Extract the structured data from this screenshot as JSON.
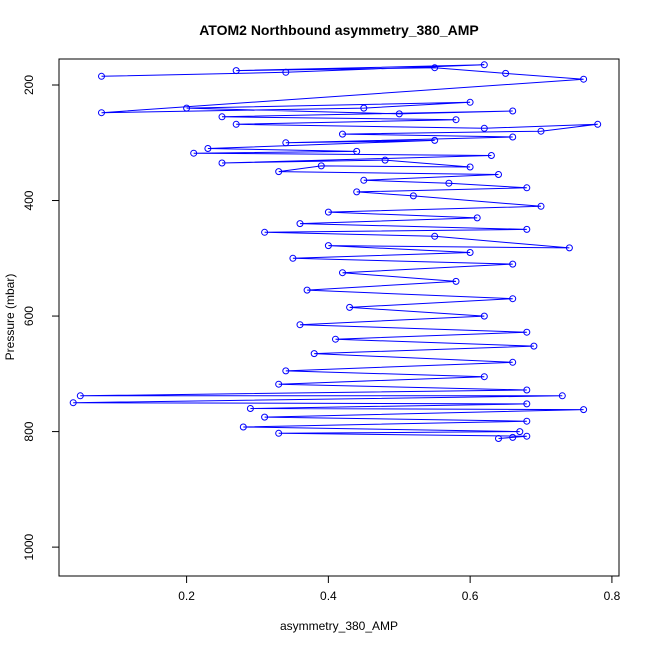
{
  "chart_data": {
    "type": "scatter",
    "title": "ATOM2 Northbound asymmetry_380_AMP",
    "xlabel": "asymmetry_380_AMP",
    "ylabel": "Pressure (mbar)",
    "xlim": [
      0.02,
      0.81
    ],
    "ylim": [
      1050,
      155
    ],
    "y_reversed": true,
    "x_ticks": [
      0.2,
      0.4,
      0.6,
      0.8
    ],
    "x_tick_labels": [
      "0.2",
      "0.4",
      "0.6",
      "0.8"
    ],
    "y_ticks": [
      200,
      400,
      600,
      800,
      1000
    ],
    "y_tick_labels": [
      "200",
      "400",
      "600",
      "800",
      "1000"
    ],
    "grid": false,
    "legend": "none",
    "series": [
      {
        "marker": "open-circle",
        "connected": true,
        "color": "#0000ff",
        "points": [
          [
            0.08,
            185
          ],
          [
            0.34,
            178
          ],
          [
            0.62,
            165
          ],
          [
            0.27,
            175
          ],
          [
            0.55,
            170
          ],
          [
            0.65,
            180
          ],
          [
            0.76,
            190
          ],
          [
            0.08,
            248
          ],
          [
            0.45,
            240
          ],
          [
            0.6,
            230
          ],
          [
            0.2,
            240
          ],
          [
            0.5,
            250
          ],
          [
            0.66,
            245
          ],
          [
            0.25,
            255
          ],
          [
            0.58,
            260
          ],
          [
            0.27,
            268
          ],
          [
            0.62,
            275
          ],
          [
            0.78,
            268
          ],
          [
            0.7,
            280
          ],
          [
            0.42,
            285
          ],
          [
            0.66,
            290
          ],
          [
            0.34,
            300
          ],
          [
            0.55,
            296
          ],
          [
            0.23,
            310
          ],
          [
            0.44,
            315
          ],
          [
            0.21,
            318
          ],
          [
            0.63,
            322
          ],
          [
            0.25,
            335
          ],
          [
            0.48,
            330
          ],
          [
            0.6,
            342
          ],
          [
            0.39,
            340
          ],
          [
            0.33,
            350
          ],
          [
            0.64,
            355
          ],
          [
            0.45,
            365
          ],
          [
            0.57,
            370
          ],
          [
            0.68,
            378
          ],
          [
            0.44,
            385
          ],
          [
            0.52,
            392
          ],
          [
            0.7,
            410
          ],
          [
            0.4,
            420
          ],
          [
            0.61,
            430
          ],
          [
            0.36,
            440
          ],
          [
            0.68,
            450
          ],
          [
            0.31,
            455
          ],
          [
            0.55,
            462
          ],
          [
            0.74,
            482
          ],
          [
            0.4,
            478
          ],
          [
            0.6,
            490
          ],
          [
            0.35,
            500
          ],
          [
            0.66,
            510
          ],
          [
            0.42,
            525
          ],
          [
            0.58,
            540
          ],
          [
            0.37,
            555
          ],
          [
            0.66,
            570
          ],
          [
            0.43,
            585
          ],
          [
            0.62,
            600
          ],
          [
            0.36,
            615
          ],
          [
            0.68,
            628
          ],
          [
            0.41,
            640
          ],
          [
            0.69,
            652
          ],
          [
            0.38,
            665
          ],
          [
            0.66,
            680
          ],
          [
            0.34,
            695
          ],
          [
            0.62,
            705
          ],
          [
            0.33,
            718
          ],
          [
            0.68,
            728
          ],
          [
            0.05,
            738
          ],
          [
            0.73,
            738
          ],
          [
            0.04,
            750
          ],
          [
            0.68,
            752
          ],
          [
            0.29,
            760
          ],
          [
            0.76,
            762
          ],
          [
            0.31,
            775
          ],
          [
            0.68,
            782
          ],
          [
            0.28,
            792
          ],
          [
            0.67,
            800
          ],
          [
            0.33,
            803
          ],
          [
            0.68,
            808
          ],
          [
            0.64,
            812
          ],
          [
            0.66,
            810
          ]
        ]
      }
    ]
  }
}
